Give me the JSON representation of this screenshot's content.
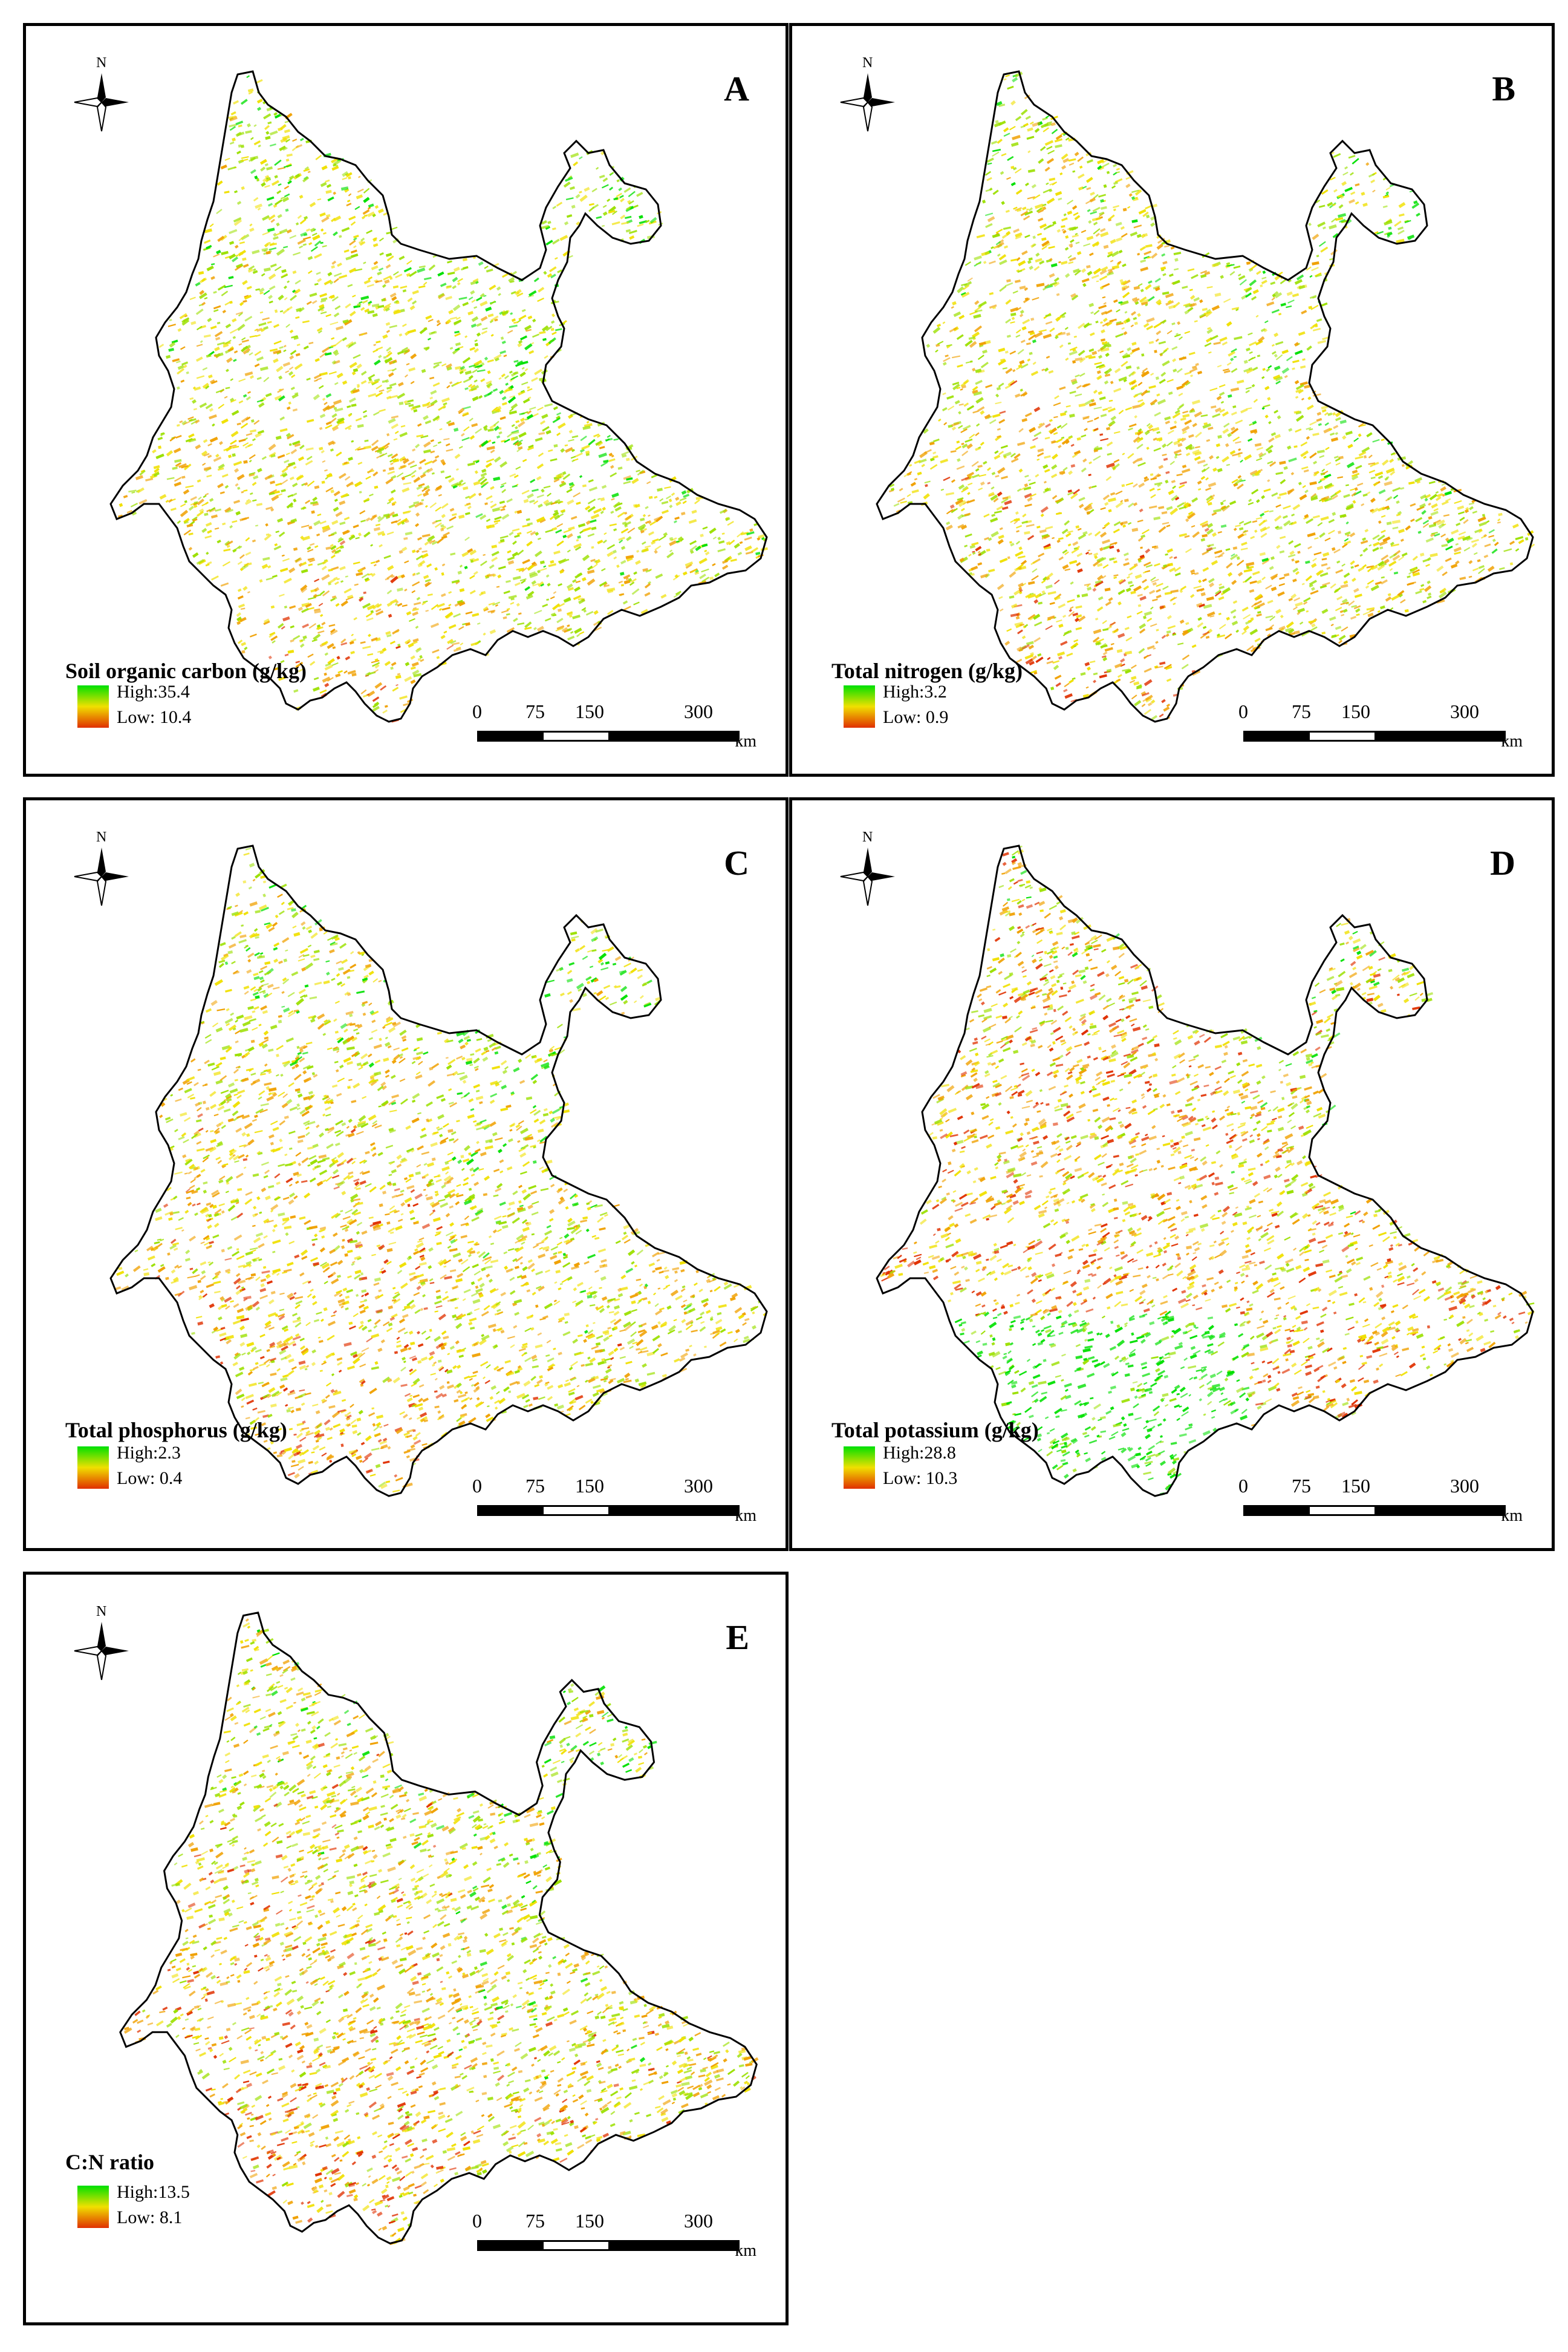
{
  "panels": [
    {
      "letter": "A",
      "title": "Soil organic carbon (g/kg)",
      "high": "High:35.4",
      "low": "Low: 10.4",
      "tint": [
        0.45,
        0.35,
        0.2
      ]
    },
    {
      "letter": "B",
      "title": "Total nitrogen (g/kg)",
      "high": "High:3.2",
      "low": "Low: 0.9",
      "tint": [
        0.4,
        0.38,
        0.22
      ]
    },
    {
      "letter": "C",
      "title": "Total phosphorus (g/kg)",
      "high": "High:2.3",
      "low": "Low: 0.4",
      "tint": [
        0.38,
        0.4,
        0.22
      ]
    },
    {
      "letter": "D",
      "title": "Total potassium (g/kg)",
      "high": "High:28.8",
      "low": "Low: 10.3",
      "tint": [
        0.25,
        0.45,
        0.3
      ]
    },
    {
      "letter": "E",
      "title": "C:N ratio",
      "high": "High:13.5",
      "low": "Low: 8.1",
      "tint": [
        0.35,
        0.42,
        0.23
      ]
    }
  ],
  "compass_label": "N",
  "scale_bar": {
    "ticks": [
      "0",
      "75",
      "150",
      "300"
    ],
    "unit": "km"
  },
  "colors": {
    "high": "#00e000",
    "mid": "#f0e000",
    "low": "#e03000",
    "outline": "#000000"
  }
}
